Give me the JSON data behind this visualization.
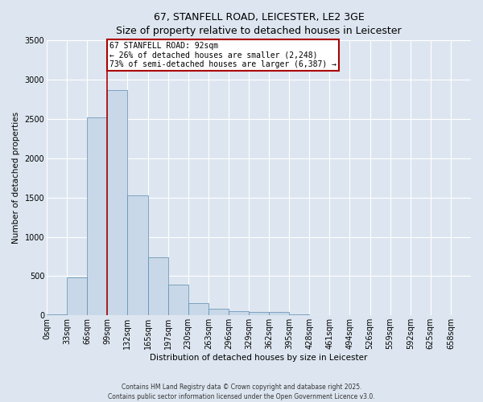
{
  "title_line1": "67, STANFELL ROAD, LEICESTER, LE2 3GE",
  "title_line2": "Size of property relative to detached houses in Leicester",
  "xlabel": "Distribution of detached houses by size in Leicester",
  "ylabel": "Number of detached properties",
  "footer_line1": "Contains HM Land Registry data © Crown copyright and database right 2025.",
  "footer_line2": "Contains public sector information licensed under the Open Government Licence v3.0.",
  "bin_labels": [
    "0sqm",
    "33sqm",
    "66sqm",
    "99sqm",
    "132sqm",
    "165sqm",
    "197sqm",
    "230sqm",
    "263sqm",
    "296sqm",
    "329sqm",
    "362sqm",
    "395sqm",
    "428sqm",
    "461sqm",
    "494sqm",
    "526sqm",
    "559sqm",
    "592sqm",
    "625sqm",
    "658sqm"
  ],
  "bar_values": [
    10,
    480,
    2520,
    2870,
    1530,
    740,
    390,
    155,
    80,
    55,
    45,
    40,
    10,
    5,
    5,
    5,
    2,
    1,
    1,
    0,
    0
  ],
  "bar_color": "#c8d8e8",
  "bar_edge_color": "#5a8ab0",
  "vline_x": 3.0,
  "annotation_title": "67 STANFELL ROAD: 92sqm",
  "annotation_line2": "← 26% of detached houses are smaller (2,248)",
  "annotation_line3": "73% of semi-detached houses are larger (6,387) →",
  "vline_color": "#aa0000",
  "annotation_box_edgecolor": "#aa0000",
  "ylim": [
    0,
    3500
  ],
  "yticks": [
    0,
    500,
    1000,
    1500,
    2000,
    2500,
    3000,
    3500
  ],
  "background_color": "#dde6f0",
  "grid_color": "#ffffff",
  "title_fontsize": 9,
  "ylabel_fontsize": 7.5,
  "xlabel_fontsize": 7.5,
  "tick_fontsize": 7,
  "annot_fontsize": 7
}
